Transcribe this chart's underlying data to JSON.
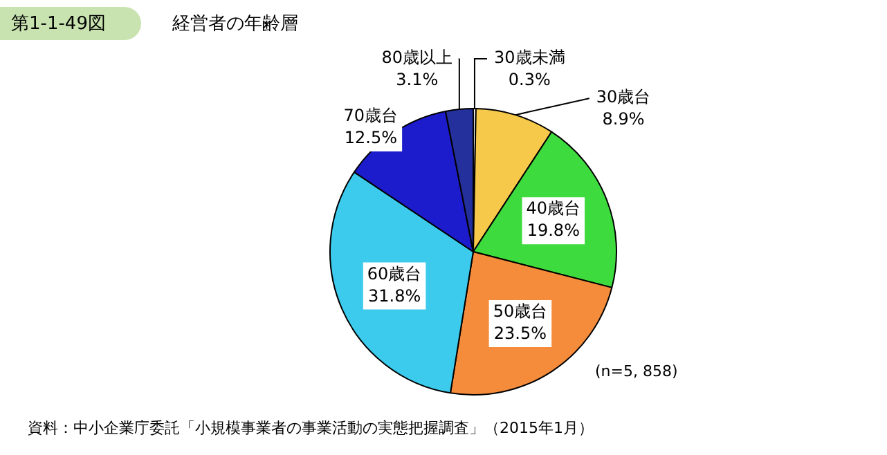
{
  "chart_data": {
    "type": "pie",
    "title": "第1-1-49図",
    "subtitle": "経営者の年齢層",
    "categories": [
      "30歳未満",
      "30歳台",
      "40歳台",
      "50歳台",
      "60歳台",
      "70歳台",
      "80歳以上"
    ],
    "values": [
      0.3,
      8.9,
      19.8,
      23.5,
      31.8,
      12.5,
      3.1
    ],
    "colors": [
      "#ffffff",
      "#f7c94a",
      "#3edb3e",
      "#f58c3c",
      "#3ccbec",
      "#1c1ccc",
      "#24309c"
    ],
    "value_labels": [
      "0.3%",
      "8.9%",
      "19.8%",
      "23.5%",
      "31.8%",
      "12.5%",
      "3.1%"
    ],
    "legend": false,
    "annotations": [
      "(n=5, 858)",
      "資料：中小企業庁委託「小規模事業者の事業活動の実態把握調査」（2015年1月）"
    ]
  }
}
